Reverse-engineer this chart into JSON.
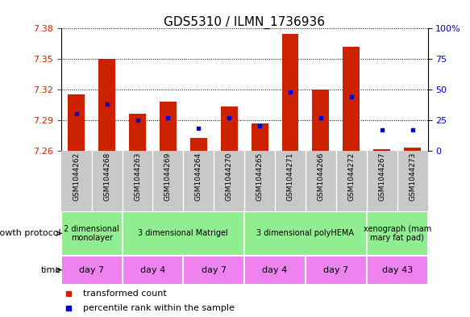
{
  "title": "GDS5310 / ILMN_1736936",
  "samples": [
    "GSM1044262",
    "GSM1044268",
    "GSM1044263",
    "GSM1044269",
    "GSM1044264",
    "GSM1044270",
    "GSM1044265",
    "GSM1044271",
    "GSM1044266",
    "GSM1044272",
    "GSM1044267",
    "GSM1044273"
  ],
  "transformed_count": [
    7.315,
    7.35,
    7.296,
    7.308,
    7.272,
    7.303,
    7.287,
    7.375,
    7.32,
    7.362,
    7.261,
    7.263
  ],
  "percentile_rank": [
    30,
    38,
    25,
    27,
    18,
    27,
    20,
    48,
    27,
    44,
    17,
    17
  ],
  "ymin": 7.26,
  "ymax": 7.38,
  "yticks": [
    7.26,
    7.29,
    7.32,
    7.35,
    7.38
  ],
  "pct_ticks": [
    0,
    25,
    50,
    75,
    100
  ],
  "bar_color": "#CC2200",
  "dot_color": "#0000CC",
  "bg_color": "#FFFFFF",
  "left_axis_color": "#CC2200",
  "right_axis_color": "#0000CC",
  "sample_bg_color": "#C8C8C8",
  "growth_protocol_groups": [
    {
      "label": "2 dimensional\nmonolayer",
      "start": 0,
      "end": 2,
      "color": "#90EE90"
    },
    {
      "label": "3 dimensional Matrigel",
      "start": 2,
      "end": 6,
      "color": "#90EE90"
    },
    {
      "label": "3 dimensional polyHEMA",
      "start": 6,
      "end": 10,
      "color": "#90EE90"
    },
    {
      "label": "xenograph (mam\nmary fat pad)",
      "start": 10,
      "end": 12,
      "color": "#90EE90"
    }
  ],
  "time_groups": [
    {
      "label": "day 7",
      "start": 0,
      "end": 2,
      "color": "#EE82EE"
    },
    {
      "label": "day 4",
      "start": 2,
      "end": 4,
      "color": "#EE82EE"
    },
    {
      "label": "day 7",
      "start": 4,
      "end": 6,
      "color": "#EE82EE"
    },
    {
      "label": "day 4",
      "start": 6,
      "end": 8,
      "color": "#EE82EE"
    },
    {
      "label": "day 7",
      "start": 8,
      "end": 10,
      "color": "#EE82EE"
    },
    {
      "label": "day 43",
      "start": 10,
      "end": 12,
      "color": "#EE82EE"
    }
  ],
  "legend_items": [
    {
      "label": "transformed count",
      "color": "#CC2200"
    },
    {
      "label": "percentile rank within the sample",
      "color": "#0000CC"
    }
  ],
  "title_fontsize": 11,
  "tick_fontsize": 8,
  "sample_label_fontsize": 6.5,
  "row_label_fontsize": 8,
  "protocol_fontsize": 7,
  "time_fontsize": 8,
  "legend_fontsize": 8
}
